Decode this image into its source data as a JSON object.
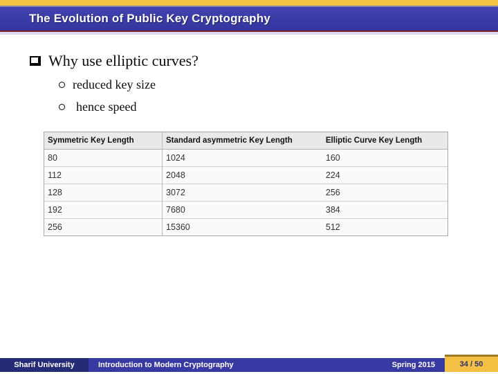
{
  "title_bar": {
    "title": "The Evolution of Public Key Cryptography"
  },
  "content": {
    "bullet": "Why use elliptic curves?",
    "sub_bullets": [
      "reduced key size",
      "hence speed"
    ]
  },
  "table": {
    "headers": [
      "Symmetric Key Length",
      "Standard asymmetric Key Length",
      "Elliptic Curve Key Length"
    ],
    "rows": [
      [
        "80",
        "1024",
        "160"
      ],
      [
        "112",
        "2048",
        "224"
      ],
      [
        "128",
        "3072",
        "256"
      ],
      [
        "192",
        "7680",
        "384"
      ],
      [
        "256",
        "15360",
        "512"
      ]
    ]
  },
  "footer": {
    "university": "Sharif University",
    "course": "Introduction to Modern Cryptography",
    "semester": "Spring 2015",
    "page": "34 / 50"
  },
  "colors": {
    "top_strip_yellow": "#f2c644",
    "title_bar_blue": "#3a3aa5",
    "title_border_maroon": "#7b2125",
    "footer_left_navy": "#262b78",
    "footer_blue": "#3939a4",
    "page_box_gold": "#f3c043"
  }
}
